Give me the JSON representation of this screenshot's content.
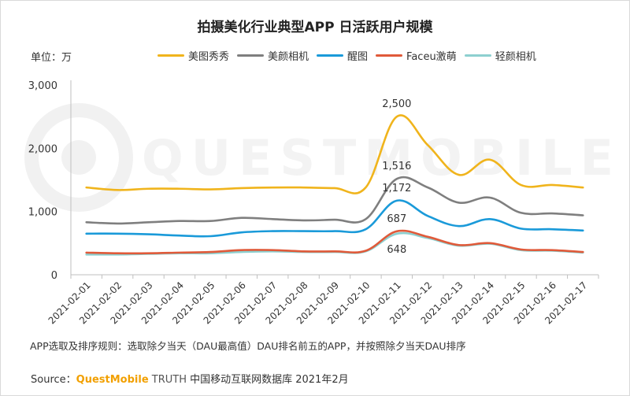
{
  "title": "拍摄美化行业典型APP 日活跃用户规模",
  "unit_label": "单位：万",
  "note": "APP选取及排序规则：选取除夕当天（DAU最高值）DAU排名前五的APP，并按照除夕当天DAU排序",
  "source": {
    "prefix": "Source：",
    "brand": "QuestMobile",
    "suffix_brand": " TRUTH",
    "rest": " 中国移动互联网数据库 2021年2月"
  },
  "watermark": "QUESTMOBILE",
  "chart_data": {
    "type": "line",
    "title": "拍摄美化行业典型APP 日活跃用户规模",
    "xlabel": "",
    "ylabel": "单位：万",
    "ylim": [
      0,
      3000
    ],
    "yticks": [
      0,
      1000,
      2000,
      3000
    ],
    "ytick_labels": [
      "0",
      "1,000",
      "2,000",
      "3,000"
    ],
    "grid": false,
    "legend_position": "top",
    "categories": [
      "2021-02-01",
      "2021-02-02",
      "2021-02-03",
      "2021-02-04",
      "2021-02-05",
      "2021-02-06",
      "2021-02-07",
      "2021-02-08",
      "2021-02-09",
      "2021-02-10",
      "2021-02-11",
      "2021-02-12",
      "2021-02-13",
      "2021-02-14",
      "2021-02-15",
      "2021-02-16",
      "2021-02-17"
    ],
    "series": [
      {
        "name": "美图秀秀",
        "color": "#f0b41c",
        "values": [
          1380,
          1340,
          1360,
          1360,
          1350,
          1370,
          1380,
          1380,
          1370,
          1380,
          2500,
          2050,
          1580,
          1820,
          1420,
          1420,
          1380
        ]
      },
      {
        "name": "美颜相机",
        "color": "#7f7f7f",
        "values": [
          830,
          810,
          830,
          850,
          850,
          900,
          880,
          860,
          870,
          880,
          1516,
          1380,
          1140,
          1220,
          980,
          970,
          940
        ]
      },
      {
        "name": "醒图",
        "color": "#1a9ad9",
        "values": [
          650,
          650,
          640,
          620,
          610,
          670,
          690,
          690,
          690,
          720,
          1172,
          930,
          770,
          880,
          730,
          720,
          700
        ]
      },
      {
        "name": "Faceu激萌",
        "color": "#e05a3a",
        "values": [
          350,
          340,
          340,
          350,
          360,
          390,
          390,
          370,
          370,
          380,
          687,
          600,
          470,
          500,
          400,
          390,
          360
        ]
      },
      {
        "name": "轻颜相机",
        "color": "#8dd0d0",
        "values": [
          320,
          320,
          330,
          340,
          340,
          360,
          370,
          360,
          360,
          370,
          648,
          580,
          460,
          490,
          390,
          380,
          350
        ]
      }
    ],
    "data_labels": [
      {
        "series": "美图秀秀",
        "category": "2021-02-11",
        "text": "2,500"
      },
      {
        "series": "美颜相机",
        "category": "2021-02-11",
        "text": "1,516"
      },
      {
        "series": "醒图",
        "category": "2021-02-11",
        "text": "1,172"
      },
      {
        "series": "Faceu激萌",
        "category": "2021-02-11",
        "text": "687"
      },
      {
        "series": "轻颜相机",
        "category": "2021-02-11",
        "text": "648"
      }
    ]
  }
}
